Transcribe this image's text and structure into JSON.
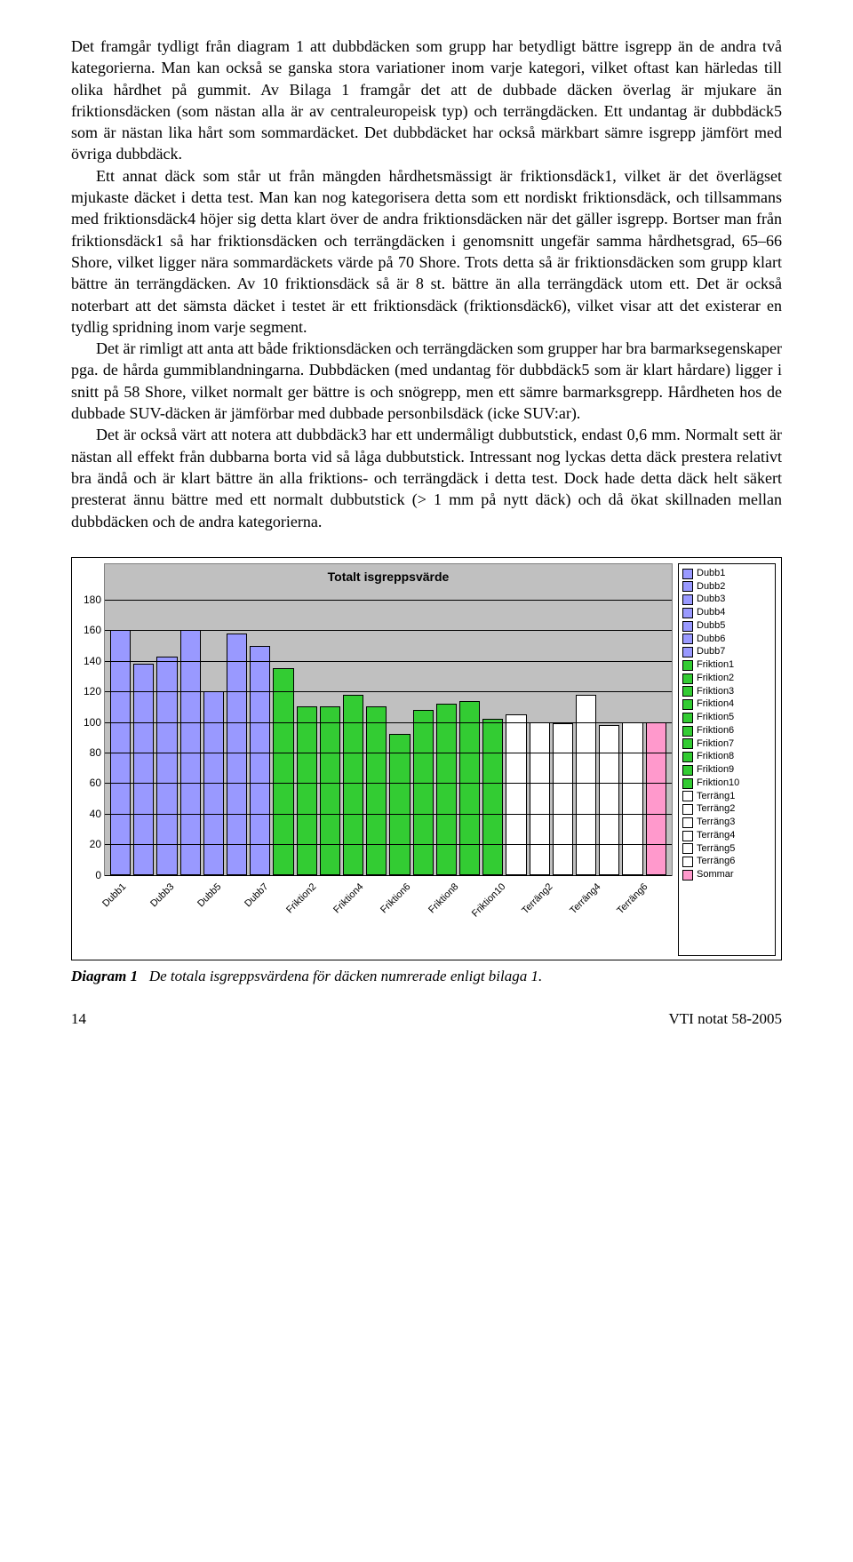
{
  "paragraphs": [
    "Det framgår tydligt från diagram 1 att dubbdäcken som grupp har betydligt bättre isgrepp än de andra två kategorierna. Man kan också se ganska stora variationer inom varje kategori, vilket oftast kan härledas till olika hårdhet på gummit. Av Bilaga 1 framgår det att de dubbade däcken överlag är mjukare än friktionsdäcken (som nästan alla är av centraleuropeisk typ) och terrängdäcken. Ett undantag är dubbdäck5 som är nästan lika hårt som sommardäcket. Det dubbdäcket har också märkbart sämre isgrepp jämfört med övriga dubbdäck.",
    "Ett annat däck som står ut från mängden hårdhetsmässigt är friktionsdäck1, vilket är det överlägset mjukaste däcket i detta test. Man kan nog kategorisera detta som ett nordiskt friktionsdäck, och tillsammans med friktionsdäck4 höjer sig detta klart över de andra friktionsdäcken när det gäller isgrepp. Bortser man från friktionsdäck1 så har friktionsdäcken och terrängdäcken i genomsnitt ungefär samma hårdhetsgrad, 65–66 Shore, vilket ligger nära sommardäckets värde på 70 Shore. Trots detta så är friktionsdäcken som grupp klart bättre än terrängdäcken. Av 10 friktionsdäck så är 8 st. bättre än alla terrängdäck utom ett. Det är också noterbart att det sämsta däcket i testet är ett friktionsdäck (friktionsdäck6), vilket visar att det existerar en tydlig spridning inom varje segment.",
    "Det är rimligt att anta att både friktionsdäcken och terrängdäcken som grupper har bra barmarksegenskaper pga. de hårda gummiblandningarna. Dubbdäcken (med undantag för dubbdäck5 som är klart hårdare) ligger i snitt på 58 Shore, vilket normalt ger bättre is och snögrepp, men ett sämre barmarksgrepp. Hårdheten hos de dubbade SUV-däcken är jämförbar med dubbade personbilsdäck (icke SUV:ar).",
    "Det är också värt att notera att dubbdäck3 har ett undermåligt dubbutstick, endast 0,6 mm. Normalt sett är nästan all effekt från dubbarna borta vid så låga dubbutstick. Intressant nog lyckas detta däck prestera relativt bra ändå och är klart bättre än alla friktions- och terrängdäck i detta test. Dock hade detta däck helt säkert presterat ännu bättre med ett normalt dubbutstick (> 1 mm på nytt däck) och då ökat skillnaden mellan dubbdäcken och de andra kategorierna."
  ],
  "chart": {
    "type": "bar",
    "title": "Totalt isgreppsvärde",
    "title_fontsize": 14,
    "background_color": "#c0c0c0",
    "grid_color": "#000000",
    "ylim": [
      0,
      180
    ],
    "ytick_step": 20,
    "yticks": [
      0,
      20,
      40,
      60,
      80,
      100,
      120,
      140,
      160,
      180
    ],
    "xlabels": [
      "Dubb1",
      "Dubb3",
      "Dubb5",
      "Dubb7",
      "Friktion2",
      "Friktion4",
      "Friktion6",
      "Friktion8",
      "Friktion10",
      "Terräng2",
      "Terräng4",
      "Terräng6"
    ],
    "label_fontsize": 12,
    "series": [
      {
        "name": "Dubb1",
        "value": 160,
        "color": "#9999ff"
      },
      {
        "name": "Dubb2",
        "value": 138,
        "color": "#9999ff"
      },
      {
        "name": "Dubb3",
        "value": 143,
        "color": "#9999ff"
      },
      {
        "name": "Dubb4",
        "value": 160,
        "color": "#9999ff"
      },
      {
        "name": "Dubb5",
        "value": 120,
        "color": "#9999ff"
      },
      {
        "name": "Dubb6",
        "value": 158,
        "color": "#9999ff"
      },
      {
        "name": "Dubb7",
        "value": 150,
        "color": "#9999ff"
      },
      {
        "name": "Friktion1",
        "value": 135,
        "color": "#33cc33"
      },
      {
        "name": "Friktion2",
        "value": 110,
        "color": "#33cc33"
      },
      {
        "name": "Friktion3",
        "value": 110,
        "color": "#33cc33"
      },
      {
        "name": "Friktion4",
        "value": 118,
        "color": "#33cc33"
      },
      {
        "name": "Friktion5",
        "value": 110,
        "color": "#33cc33"
      },
      {
        "name": "Friktion6",
        "value": 92,
        "color": "#33cc33"
      },
      {
        "name": "Friktion7",
        "value": 108,
        "color": "#33cc33"
      },
      {
        "name": "Friktion8",
        "value": 112,
        "color": "#33cc33"
      },
      {
        "name": "Friktion9",
        "value": 114,
        "color": "#33cc33"
      },
      {
        "name": "Friktion10",
        "value": 102,
        "color": "#33cc33"
      },
      {
        "name": "Terräng1",
        "value": 105,
        "color": "#ffffff"
      },
      {
        "name": "Terräng2",
        "value": 100,
        "color": "#ffffff"
      },
      {
        "name": "Terräng3",
        "value": 99,
        "color": "#ffffff"
      },
      {
        "name": "Terräng4",
        "value": 118,
        "color": "#ffffff"
      },
      {
        "name": "Terräng5",
        "value": 98,
        "color": "#ffffff"
      },
      {
        "name": "Terräng6",
        "value": 100,
        "color": "#ffffff"
      },
      {
        "name": "Sommar",
        "value": 100,
        "color": "#ff99cc"
      }
    ],
    "legend": [
      {
        "label": "Dubb1",
        "color": "#9999ff"
      },
      {
        "label": "Dubb2",
        "color": "#9999ff"
      },
      {
        "label": "Dubb3",
        "color": "#9999ff"
      },
      {
        "label": "Dubb4",
        "color": "#9999ff"
      },
      {
        "label": "Dubb5",
        "color": "#9999ff"
      },
      {
        "label": "Dubb6",
        "color": "#9999ff"
      },
      {
        "label": "Dubb7",
        "color": "#9999ff"
      },
      {
        "label": "Friktion1",
        "color": "#33cc33"
      },
      {
        "label": "Friktion2",
        "color": "#33cc33"
      },
      {
        "label": "Friktion3",
        "color": "#33cc33"
      },
      {
        "label": "Friktion4",
        "color": "#33cc33"
      },
      {
        "label": "Friktion5",
        "color": "#33cc33"
      },
      {
        "label": "Friktion6",
        "color": "#33cc33"
      },
      {
        "label": "Friktion7",
        "color": "#33cc33"
      },
      {
        "label": "Friktion8",
        "color": "#33cc33"
      },
      {
        "label": "Friktion9",
        "color": "#33cc33"
      },
      {
        "label": "Friktion10",
        "color": "#33cc33"
      },
      {
        "label": "Terräng1",
        "color": "#ffffff"
      },
      {
        "label": "Terräng2",
        "color": "#ffffff"
      },
      {
        "label": "Terräng3",
        "color": "#ffffff"
      },
      {
        "label": "Terräng4",
        "color": "#ffffff"
      },
      {
        "label": "Terräng5",
        "color": "#ffffff"
      },
      {
        "label": "Terräng6",
        "color": "#ffffff"
      },
      {
        "label": "Sommar",
        "color": "#ff99cc"
      }
    ]
  },
  "caption": {
    "label": "Diagram 1",
    "text": "De totala isgreppsvärdena för däcken numrerade enligt bilaga 1."
  },
  "footer": {
    "page": "14",
    "doc": "VTI notat 58-2005"
  }
}
